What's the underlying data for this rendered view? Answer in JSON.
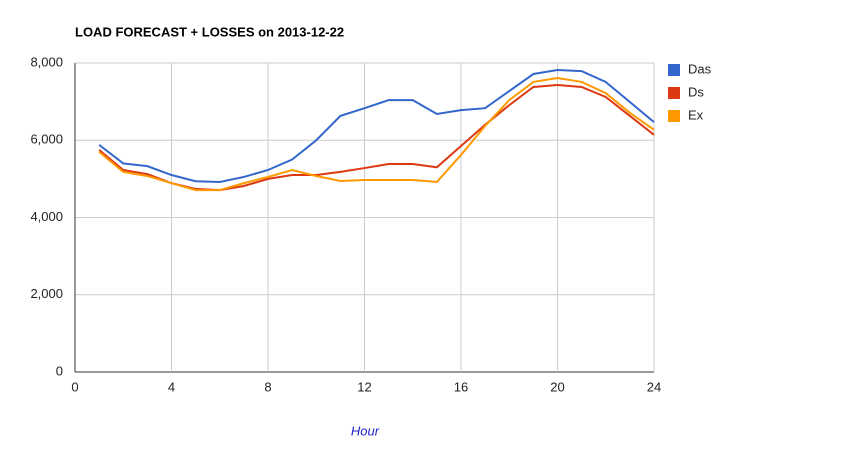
{
  "chart_data": {
    "type": "line",
    "title": "LOAD FORECAST + LOSSES on 2013-12-22",
    "x_label": "Hour",
    "x": [
      1,
      2,
      3,
      4,
      5,
      6,
      7,
      8,
      9,
      10,
      11,
      12,
      13,
      14,
      15,
      16,
      17,
      18,
      19,
      20,
      21,
      22,
      23,
      24
    ],
    "series": [
      {
        "name": "Das",
        "color": "#3366cc",
        "values": [
          5880,
          5400,
          5330,
          5100,
          4940,
          4920,
          5050,
          5230,
          5500,
          6000,
          6630,
          6830,
          7040,
          7040,
          6680,
          6780,
          6830,
          7275,
          7715,
          7820,
          7790,
          7510,
          6990,
          6470
        ]
      },
      {
        "name": "Ds",
        "color": "#dc3912",
        "values": [
          5750,
          5230,
          5125,
          4890,
          4740,
          4710,
          4815,
          5000,
          5100,
          5100,
          5180,
          5280,
          5385,
          5385,
          5300,
          5850,
          6400,
          6910,
          7380,
          7430,
          7380,
          7120,
          6630,
          6140
        ]
      },
      {
        "name": "Ex",
        "color": "#ff9900",
        "values": [
          5700,
          5180,
          5075,
          4890,
          4710,
          4710,
          4890,
          5050,
          5230,
          5075,
          4945,
          4970,
          4970,
          4970,
          4920,
          5620,
          6370,
          7040,
          7510,
          7610,
          7510,
          7220,
          6710,
          6270
        ]
      }
    ],
    "xlim": [
      0,
      24
    ],
    "xticks": [
      0,
      4,
      8,
      12,
      16,
      20,
      24
    ],
    "ylim": [
      0,
      8000
    ],
    "yticks": [
      0,
      {
        "value": 2000,
        "label": "2,000"
      },
      {
        "value": 4000,
        "label": "4,000"
      },
      {
        "value": 6000,
        "label": "6,000"
      },
      {
        "value": 8000,
        "label": "8,000"
      }
    ],
    "grid": true,
    "legend": "right"
  }
}
